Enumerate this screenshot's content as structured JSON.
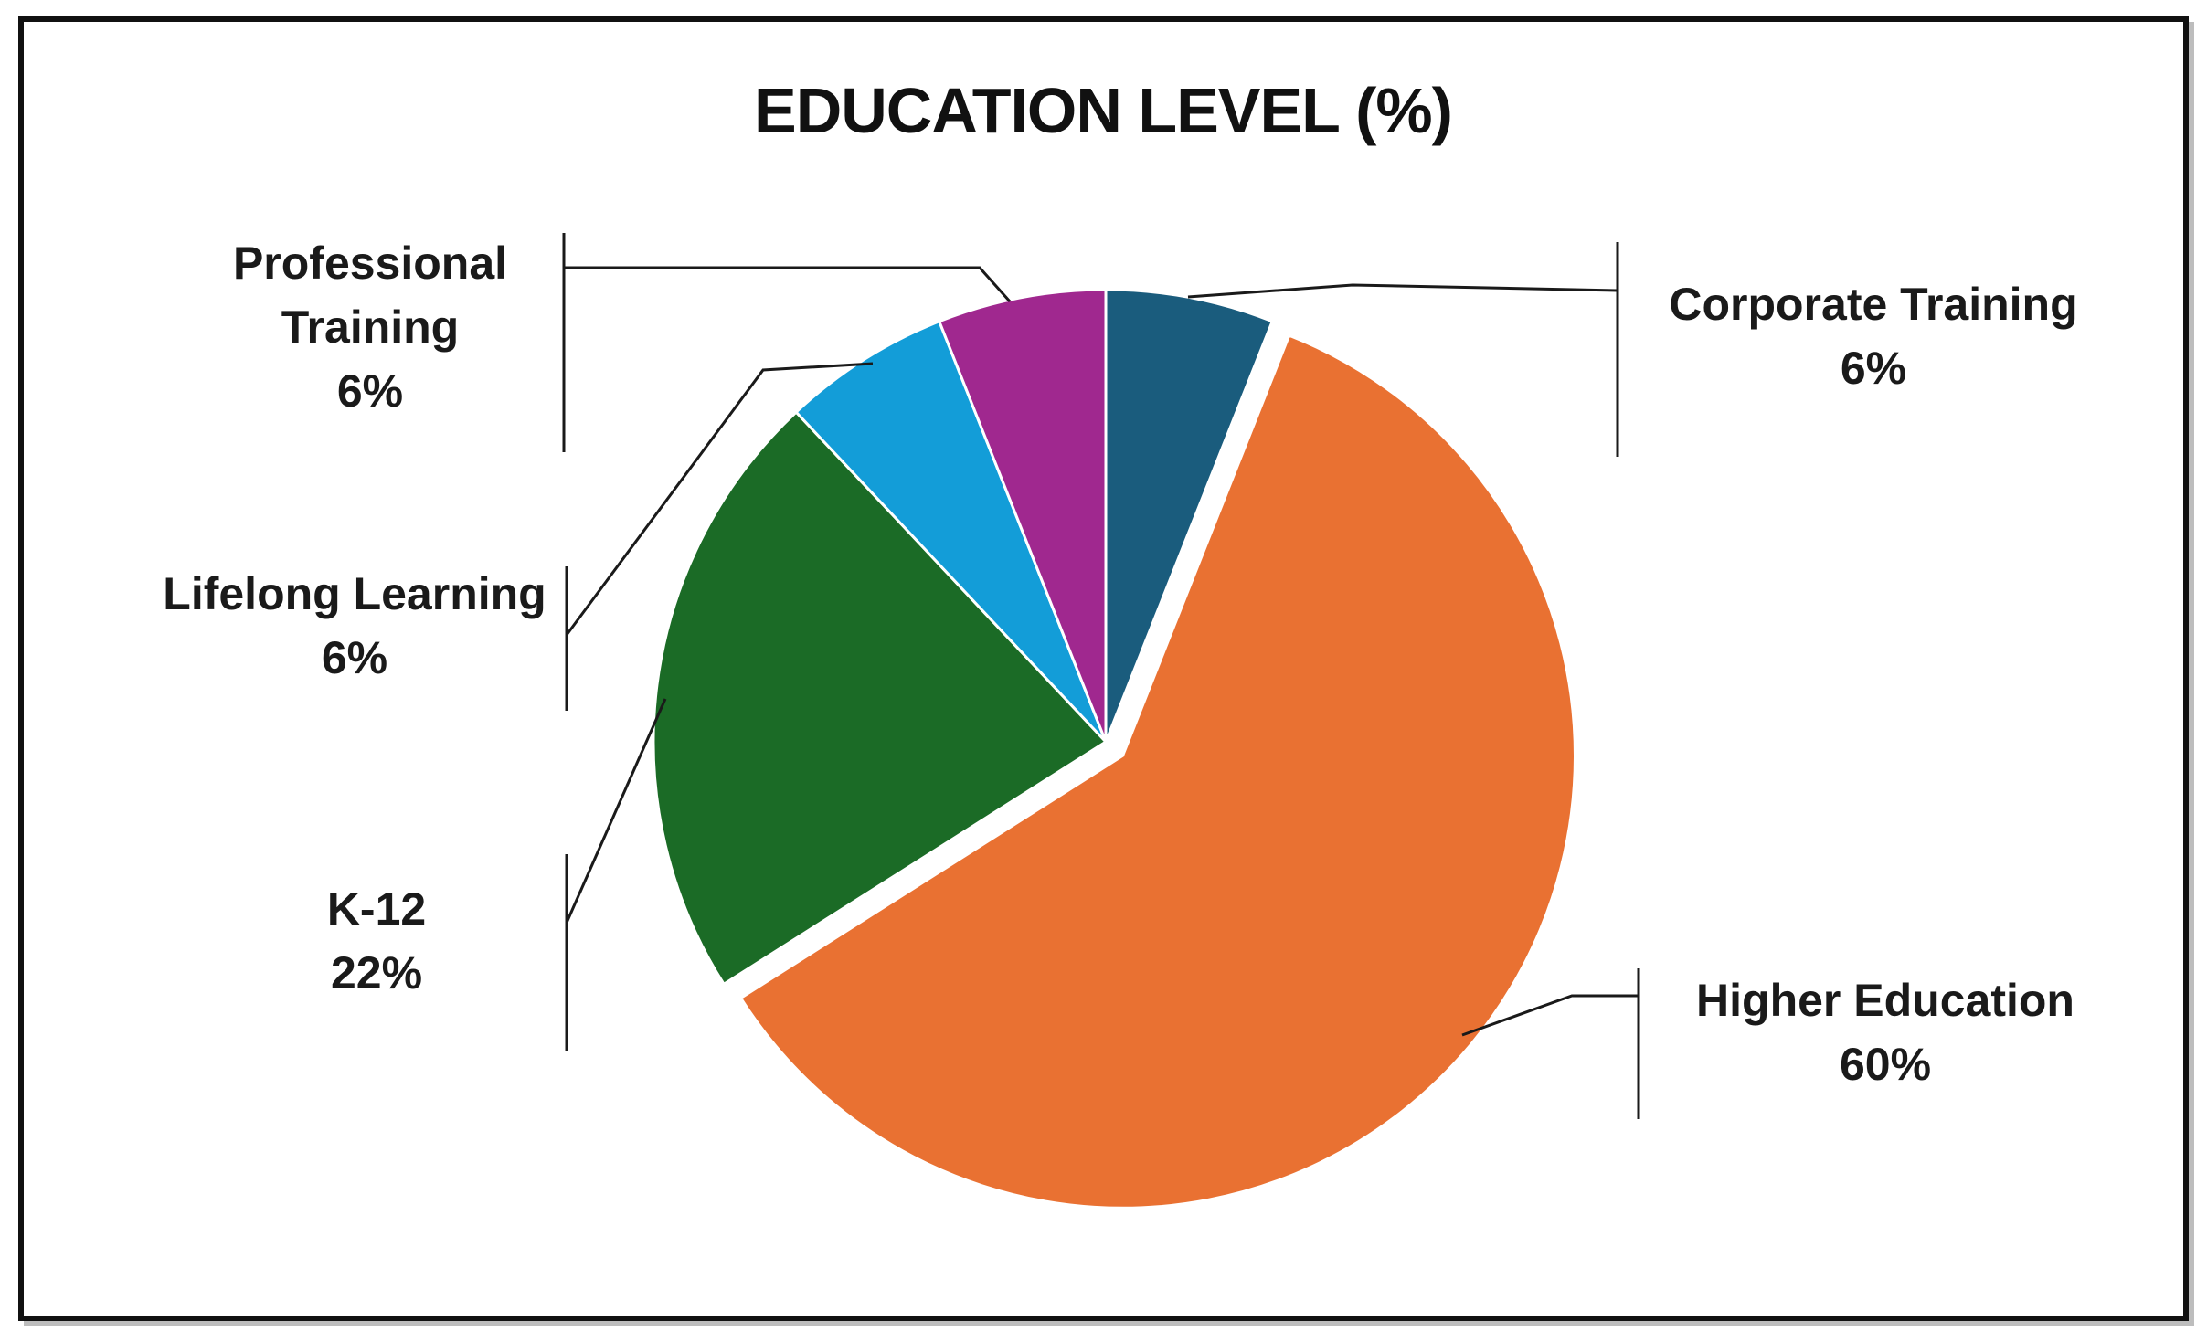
{
  "chart_data": {
    "type": "pie",
    "title": "EDUCATION LEVEL (%)",
    "categories": [
      "Corporate Training",
      "Higher Education",
      "K-12",
      "Lifelong Learning",
      "Professional Training"
    ],
    "values": [
      6,
      60,
      22,
      6,
      6
    ],
    "value_labels": [
      "6%",
      "60%",
      "22%",
      "6%",
      "6%"
    ],
    "label_lines": [
      [
        "Corporate Training",
        "6%"
      ],
      [
        "Higher Education",
        "60%"
      ],
      [
        "K-12",
        "22%"
      ],
      [
        "Lifelong Learning",
        "6%"
      ],
      [
        "Professional",
        "Training",
        "6%"
      ]
    ],
    "colors": [
      "#1a5c7d",
      "#e97132",
      "#1b6b26",
      "#139dd8",
      "#a0288f"
    ],
    "start_angle_deg": 0,
    "direction": "clockwise",
    "exploded": [
      "Higher Education"
    ],
    "legend": "none",
    "data_labels": "outside with leader lines"
  }
}
